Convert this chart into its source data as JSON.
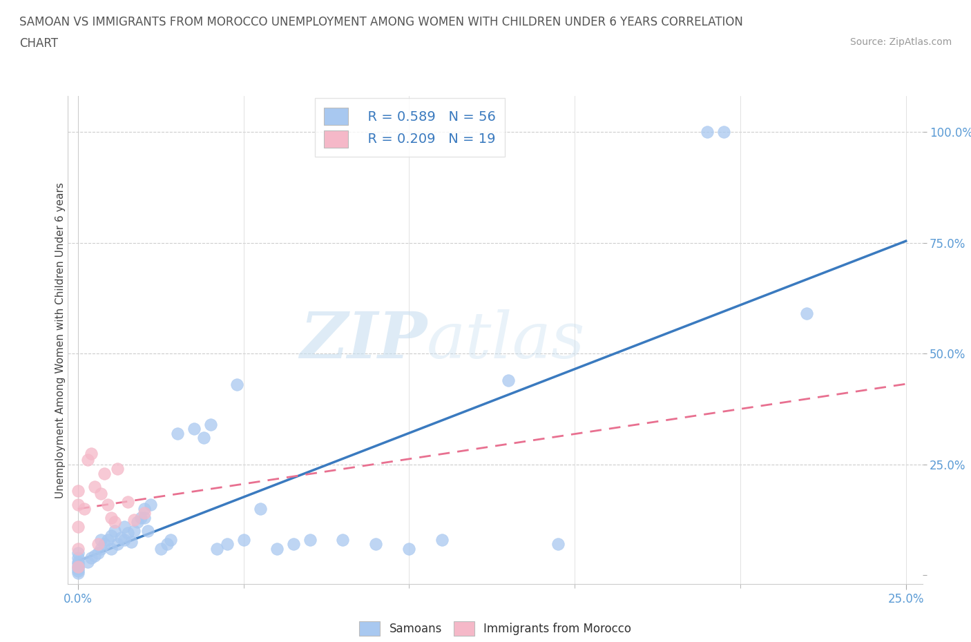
{
  "title_line1": "SAMOAN VS IMMIGRANTS FROM MOROCCO UNEMPLOYMENT AMONG WOMEN WITH CHILDREN UNDER 6 YEARS CORRELATION",
  "title_line2": "CHART",
  "source": "Source: ZipAtlas.com",
  "ylabel": "Unemployment Among Women with Children Under 6 years",
  "xlim": [
    -0.003,
    0.255
  ],
  "ylim": [
    -0.02,
    1.08
  ],
  "samoan_color": "#a8c8f0",
  "morocco_color": "#f5b8c8",
  "samoan_line_color": "#3a7abf",
  "morocco_line_color": "#e87090",
  "watermark_zip": "ZIP",
  "watermark_atlas": "atlas",
  "legend_r_samoan": "R = 0.589",
  "legend_n_samoan": "N = 56",
  "legend_r_morocco": "R = 0.209",
  "legend_n_morocco": "N = 19",
  "samoan_points_x": [
    0.0,
    0.0,
    0.0,
    0.0,
    0.0,
    0.0,
    0.0,
    0.0,
    0.003,
    0.004,
    0.005,
    0.006,
    0.007,
    0.007,
    0.008,
    0.009,
    0.01,
    0.01,
    0.011,
    0.012,
    0.013,
    0.014,
    0.014,
    0.015,
    0.016,
    0.017,
    0.018,
    0.019,
    0.02,
    0.02,
    0.021,
    0.022,
    0.025,
    0.027,
    0.028,
    0.03,
    0.035,
    0.038,
    0.04,
    0.042,
    0.045,
    0.048,
    0.05,
    0.055,
    0.06,
    0.065,
    0.07,
    0.08,
    0.09,
    0.1,
    0.11,
    0.13,
    0.145,
    0.19,
    0.195,
    0.22
  ],
  "samoan_points_y": [
    0.005,
    0.01,
    0.015,
    0.02,
    0.025,
    0.03,
    0.04,
    0.05,
    0.03,
    0.04,
    0.045,
    0.05,
    0.06,
    0.08,
    0.07,
    0.08,
    0.09,
    0.06,
    0.1,
    0.07,
    0.085,
    0.11,
    0.08,
    0.095,
    0.075,
    0.1,
    0.12,
    0.13,
    0.15,
    0.13,
    0.1,
    0.16,
    0.06,
    0.07,
    0.08,
    0.32,
    0.33,
    0.31,
    0.34,
    0.06,
    0.07,
    0.43,
    0.08,
    0.15,
    0.06,
    0.07,
    0.08,
    0.08,
    0.07,
    0.06,
    0.08,
    0.44,
    0.07,
    1.0,
    1.0,
    0.59
  ],
  "morocco_points_x": [
    0.0,
    0.0,
    0.0,
    0.0,
    0.0,
    0.002,
    0.003,
    0.004,
    0.005,
    0.006,
    0.007,
    0.008,
    0.009,
    0.01,
    0.011,
    0.012,
    0.015,
    0.017,
    0.02
  ],
  "morocco_points_y": [
    0.02,
    0.06,
    0.11,
    0.16,
    0.19,
    0.15,
    0.26,
    0.275,
    0.2,
    0.07,
    0.185,
    0.23,
    0.16,
    0.13,
    0.12,
    0.24,
    0.165,
    0.125,
    0.14
  ]
}
